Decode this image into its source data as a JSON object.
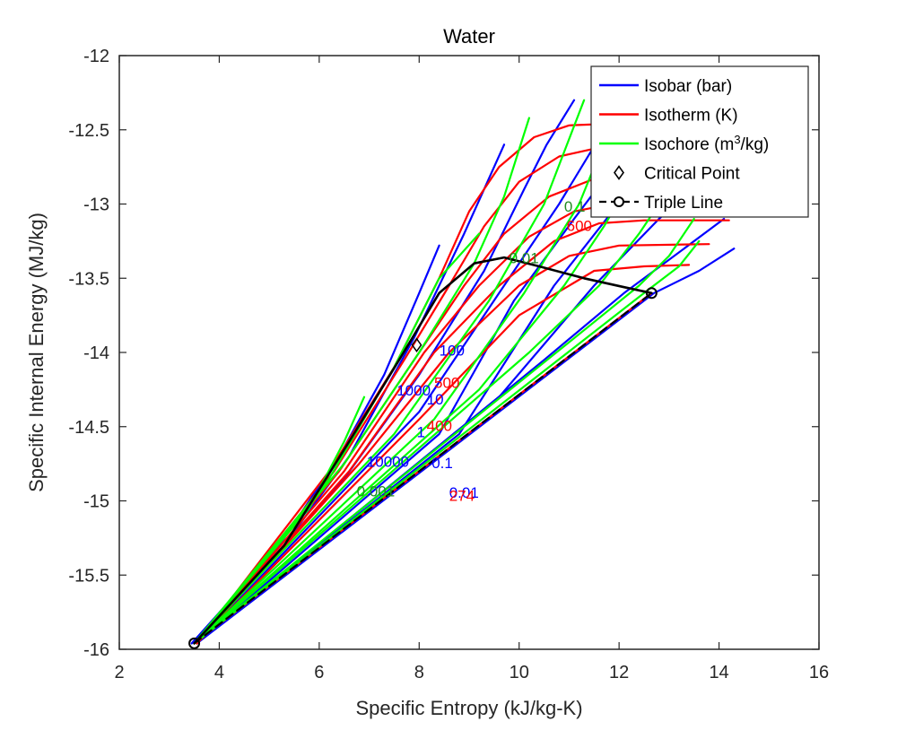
{
  "chart_data": {
    "type": "line",
    "title": "Water",
    "xlabel": "Specific Entropy (kJ/kg-K)",
    "ylabel": "Specific Internal Energy (MJ/kg)",
    "xlim": [
      2,
      16
    ],
    "ylim": [
      -16,
      -12
    ],
    "xticks": [
      2,
      4,
      6,
      8,
      10,
      12,
      14,
      16
    ],
    "xtick_labels": [
      "2",
      "4",
      "6",
      "8",
      "10",
      "12",
      "14",
      "16"
    ],
    "yticks": [
      -16,
      -15.5,
      -15,
      -14.5,
      -14,
      -13.5,
      -13,
      -12.5,
      -12
    ],
    "ytick_labels": [
      "-16",
      "-15.5",
      "-15",
      "-14.5",
      "-14",
      "-13.5",
      "-13",
      "-12.5",
      "-12"
    ],
    "grid": false,
    "legend_position": "top-right",
    "legend": [
      {
        "label": "Isobar (bar)",
        "color": "#0000ff",
        "style": "line"
      },
      {
        "label": "Isotherm (K)",
        "color": "#ff0000",
        "style": "line"
      },
      {
        "label": "Isochore (m",
        "sup": "3",
        "label_tail": "/kg)",
        "color": "#00ff00",
        "style": "line"
      },
      {
        "label": "Critical Point",
        "color": "#000000",
        "style": "diamond"
      },
      {
        "label": "Triple Line",
        "color": "#000000",
        "style": "dashed-circle"
      }
    ],
    "series": [
      {
        "kind": "isobar",
        "color": "#0000ff",
        "points": [
          [
            3.45,
            -15.96
          ],
          [
            5.2,
            -15.3
          ],
          [
            6.4,
            -14.7
          ],
          [
            7.3,
            -14.15
          ],
          [
            8.0,
            -13.6
          ],
          [
            8.4,
            -13.28
          ]
        ]
      },
      {
        "kind": "isobar",
        "color": "#0000ff",
        "points": [
          [
            3.45,
            -15.96
          ],
          [
            5.3,
            -15.3
          ],
          [
            6.6,
            -14.7
          ],
          [
            7.9,
            -13.9
          ],
          [
            8.9,
            -13.2
          ],
          [
            9.7,
            -12.6
          ]
        ]
      },
      {
        "kind": "isobar",
        "color": "#0000ff",
        "points": [
          [
            3.55,
            -15.96
          ],
          [
            6.5,
            -14.85
          ],
          [
            8.0,
            -14.15
          ],
          [
            9.3,
            -13.45
          ],
          [
            10.1,
            -12.9
          ],
          [
            10.55,
            -12.6
          ],
          [
            11.1,
            -12.3
          ]
        ]
      },
      {
        "kind": "isobar",
        "color": "#0000ff",
        "points": [
          [
            3.55,
            -15.96
          ],
          [
            8.0,
            -14.4
          ],
          [
            9.6,
            -13.6
          ],
          [
            10.8,
            -13.0
          ],
          [
            11.7,
            -12.5
          ]
        ]
      },
      {
        "kind": "isobar",
        "color": "#0000ff",
        "points": [
          [
            3.55,
            -15.96
          ],
          [
            8.4,
            -14.55
          ],
          [
            9.9,
            -13.65
          ],
          [
            11.1,
            -13.1
          ],
          [
            12.0,
            -12.7
          ],
          [
            12.5,
            -12.5
          ]
        ]
      },
      {
        "kind": "isobar",
        "color": "#0000ff",
        "points": [
          [
            3.55,
            -15.96
          ],
          [
            8.8,
            -14.55
          ],
          [
            10.7,
            -13.55
          ],
          [
            12.1,
            -12.95
          ],
          [
            12.9,
            -12.6
          ]
        ]
      },
      {
        "kind": "isobar",
        "color": "#0000ff",
        "points": [
          [
            3.55,
            -15.96
          ],
          [
            9.6,
            -14.3
          ],
          [
            11.5,
            -13.55
          ],
          [
            12.8,
            -13.1
          ],
          [
            13.45,
            -12.9
          ]
        ]
      },
      {
        "kind": "isobar",
        "color": "#0000ff",
        "points": [
          [
            3.55,
            -15.96
          ],
          [
            10.5,
            -14.05
          ],
          [
            12.1,
            -13.6
          ],
          [
            13.3,
            -13.3
          ],
          [
            14.1,
            -13.1
          ]
        ]
      },
      {
        "kind": "isobar",
        "color": "#0000ff",
        "points": [
          [
            3.55,
            -15.96
          ],
          [
            12.7,
            -13.6
          ],
          [
            13.6,
            -13.45
          ],
          [
            14.3,
            -13.3
          ]
        ]
      },
      {
        "kind": "isotherm",
        "color": "#ff0000",
        "points": [
          [
            3.55,
            -15.96
          ],
          [
            6.2,
            -14.8
          ],
          [
            7.5,
            -14.1
          ],
          [
            8.4,
            -13.5
          ],
          [
            9.0,
            -13.05
          ],
          [
            9.6,
            -12.75
          ],
          [
            10.3,
            -12.55
          ],
          [
            11.0,
            -12.47
          ],
          [
            12.5,
            -12.45
          ]
        ]
      },
      {
        "kind": "isotherm",
        "color": "#ff0000",
        "points": [
          [
            3.55,
            -15.96
          ],
          [
            6.3,
            -14.8
          ],
          [
            7.7,
            -14.05
          ],
          [
            8.6,
            -13.55
          ],
          [
            9.3,
            -13.15
          ],
          [
            10.0,
            -12.85
          ],
          [
            10.8,
            -12.68
          ],
          [
            11.6,
            -12.62
          ],
          [
            12.5,
            -12.61
          ]
        ]
      },
      {
        "kind": "isotherm",
        "color": "#ff0000",
        "points": [
          [
            3.55,
            -15.96
          ],
          [
            6.4,
            -14.8
          ],
          [
            7.9,
            -14.05
          ],
          [
            8.9,
            -13.55
          ],
          [
            9.7,
            -13.2
          ],
          [
            10.6,
            -12.95
          ],
          [
            11.5,
            -12.83
          ],
          [
            12.5,
            -12.8
          ]
        ]
      },
      {
        "kind": "isotherm",
        "color": "#ff0000",
        "points": [
          [
            3.55,
            -15.96
          ],
          [
            6.5,
            -14.8
          ],
          [
            8.1,
            -14.0
          ],
          [
            9.2,
            -13.55
          ],
          [
            10.2,
            -13.22
          ],
          [
            11.1,
            -13.05
          ],
          [
            12.0,
            -12.99
          ],
          [
            12.7,
            -12.98
          ]
        ]
      },
      {
        "kind": "isotherm",
        "color": "#ff0000",
        "points": [
          [
            3.55,
            -15.96
          ],
          [
            6.6,
            -14.8
          ],
          [
            8.3,
            -14.0
          ],
          [
            9.6,
            -13.55
          ],
          [
            10.7,
            -13.25
          ],
          [
            11.6,
            -13.13
          ],
          [
            12.5,
            -13.11
          ],
          [
            14.2,
            -13.11
          ]
        ]
      },
      {
        "kind": "isotherm",
        "color": "#ff0000",
        "points": [
          [
            3.55,
            -15.96
          ],
          [
            6.8,
            -14.75
          ],
          [
            8.6,
            -14.0
          ],
          [
            10.0,
            -13.55
          ],
          [
            11.0,
            -13.35
          ],
          [
            12.0,
            -13.28
          ],
          [
            13.8,
            -13.27
          ]
        ]
      },
      {
        "kind": "isotherm",
        "color": "#ff0000",
        "points": [
          [
            3.55,
            -15.96
          ],
          [
            8.0,
            -14.45
          ],
          [
            10.0,
            -13.75
          ],
          [
            11.5,
            -13.45
          ],
          [
            12.5,
            -13.42
          ],
          [
            13.4,
            -13.41
          ]
        ]
      },
      {
        "kind": "isotherm",
        "color": "#ff0000",
        "points": [
          [
            3.5,
            -15.96
          ],
          [
            12.65,
            -13.6
          ]
        ]
      },
      {
        "kind": "isochore",
        "color": "#00ff00",
        "points": [
          [
            3.5,
            -15.96
          ],
          [
            5.8,
            -15.05
          ],
          [
            6.5,
            -14.6
          ],
          [
            6.9,
            -14.3
          ]
        ]
      },
      {
        "kind": "isochore",
        "color": "#00ff00",
        "points": [
          [
            3.5,
            -15.96
          ],
          [
            6.2,
            -14.85
          ],
          [
            7.5,
            -14.1
          ],
          [
            8.4,
            -13.5
          ],
          [
            9.2,
            -13.2
          ]
        ]
      },
      {
        "kind": "isochore",
        "color": "#00ff00",
        "points": [
          [
            3.5,
            -15.96
          ],
          [
            6.5,
            -14.75
          ],
          [
            8.0,
            -14.0
          ],
          [
            9.1,
            -13.4
          ],
          [
            9.7,
            -12.95
          ],
          [
            10.2,
            -12.42
          ]
        ]
      },
      {
        "kind": "isochore",
        "color": "#00ff00",
        "points": [
          [
            3.5,
            -15.96
          ],
          [
            7.5,
            -14.55
          ],
          [
            9.4,
            -13.65
          ],
          [
            10.5,
            -13.0
          ],
          [
            11.3,
            -12.3
          ]
        ]
      },
      {
        "kind": "isochore",
        "color": "#00ff00",
        "points": [
          [
            3.5,
            -15.96
          ],
          [
            8.3,
            -14.45
          ],
          [
            10.1,
            -13.6
          ],
          [
            11.2,
            -13.0
          ],
          [
            11.9,
            -12.42
          ]
        ]
      },
      {
        "kind": "isochore",
        "color": "#00ff00",
        "points": [
          [
            3.5,
            -15.96
          ],
          [
            9.2,
            -14.25
          ],
          [
            10.9,
            -13.55
          ],
          [
            11.7,
            -13.15
          ],
          [
            12.3,
            -12.8
          ]
        ]
      },
      {
        "kind": "isochore",
        "color": "#00ff00",
        "points": [
          [
            3.5,
            -15.96
          ],
          [
            10.2,
            -14.0
          ],
          [
            11.6,
            -13.55
          ],
          [
            12.4,
            -13.2
          ],
          [
            12.9,
            -12.95
          ]
        ]
      },
      {
        "kind": "isochore",
        "color": "#00ff00",
        "points": [
          [
            3.5,
            -15.96
          ],
          [
            11.3,
            -13.85
          ],
          [
            12.4,
            -13.55
          ],
          [
            13.0,
            -13.35
          ],
          [
            13.5,
            -13.1
          ]
        ]
      },
      {
        "kind": "isochore",
        "color": "#00ff00",
        "points": [
          [
            3.5,
            -15.96
          ],
          [
            12.5,
            -13.6
          ],
          [
            13.2,
            -13.42
          ],
          [
            13.6,
            -13.25
          ]
        ]
      },
      {
        "kind": "saturation",
        "color": "#000000",
        "points": [
          [
            3.5,
            -15.96
          ],
          [
            5.3,
            -15.3
          ],
          [
            6.6,
            -14.6
          ],
          [
            7.6,
            -14.05
          ],
          [
            8.4,
            -13.6
          ],
          [
            9.1,
            -13.4
          ],
          [
            9.7,
            -13.36
          ],
          [
            10.4,
            -13.42
          ],
          [
            11.3,
            -13.5
          ],
          [
            12.1,
            -13.56
          ],
          [
            12.65,
            -13.6
          ]
        ]
      },
      {
        "kind": "triple-line",
        "color": "#000000",
        "dashed": true,
        "points": [
          [
            3.5,
            -15.96
          ],
          [
            12.65,
            -13.6
          ]
        ]
      }
    ],
    "critical_point": {
      "x": 7.95,
      "y": -13.95
    },
    "triple_points": [
      [
        3.5,
        -15.96
      ],
      [
        12.65,
        -13.6
      ]
    ],
    "annotations": [
      {
        "text": "100",
        "x": 8.4,
        "y": -14.02,
        "color": "#0000ff"
      },
      {
        "text": "1000",
        "x": 7.55,
        "y": -14.29,
        "color": "#0000ff"
      },
      {
        "text": "10",
        "x": 8.15,
        "y": -14.35,
        "color": "#0000ff"
      },
      {
        "text": "1",
        "x": 7.95,
        "y": -14.57,
        "color": "#0000ff"
      },
      {
        "text": "10000",
        "x": 6.95,
        "y": -14.77,
        "color": "#0000ff"
      },
      {
        "text": "0.1",
        "x": 8.25,
        "y": -14.78,
        "color": "#0000ff"
      },
      {
        "text": "0.01",
        "x": 8.6,
        "y": -14.98,
        "color": "#0000ff"
      },
      {
        "text": "500",
        "x": 8.3,
        "y": -14.24,
        "color": "#ff0000"
      },
      {
        "text": "400",
        "x": 8.15,
        "y": -14.53,
        "color": "#ff0000"
      },
      {
        "text": "274",
        "x": 8.6,
        "y": -15.0,
        "color": "#ff0000"
      },
      {
        "text": "600",
        "x": 10.95,
        "y": -13.18,
        "color": "#ff0000"
      },
      {
        "text": "7",
        "x": 11.45,
        "y": -13.02,
        "color": "#ff0000"
      },
      {
        "text": "0.1",
        "x": 10.9,
        "y": -13.05,
        "color": "#228b22"
      },
      {
        "text": "0.01",
        "x": 9.8,
        "y": -13.4,
        "color": "#228b22"
      },
      {
        "text": "0.001",
        "x": 6.75,
        "y": -14.97,
        "color": "#228b22"
      }
    ]
  }
}
